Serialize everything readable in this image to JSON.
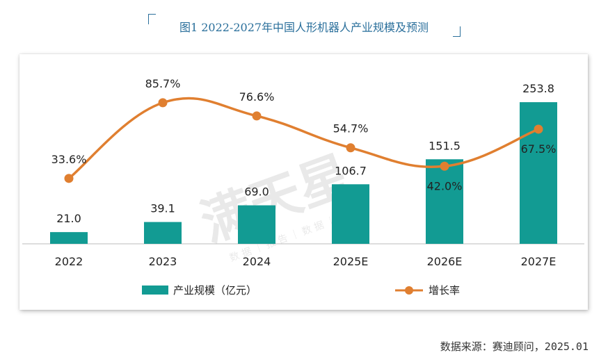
{
  "title": "图1 2022-2027年中国人形机器人产业规模及预测",
  "source": "数据来源：赛迪顾问，2025.01",
  "watermark": {
    "big": "满天星",
    "small": "数 据 ｜ 报 告 ｜ 数 据 ｜ 研 究"
  },
  "colors": {
    "bar": "#129b93",
    "line": "#e07f30",
    "title": "#2a6f9b",
    "text": "#222222",
    "axis": "#bbbbbb"
  },
  "chart_data": {
    "type": "bar",
    "title": "图1 2022-2027年中国人形机器人产业规模及预测",
    "categories": [
      "2022",
      "2023",
      "2024",
      "2025E",
      "2026E",
      "2027E"
    ],
    "series": [
      {
        "name": "产业规模（亿元）",
        "type": "bar",
        "axis": "left",
        "values": [
          21.0,
          39.1,
          69.0,
          106.7,
          151.5,
          253.8
        ],
        "labels": [
          "21.0",
          "39.1",
          "69.0",
          "106.7",
          "151.5",
          "253.8"
        ]
      },
      {
        "name": "增长率",
        "type": "line",
        "axis": "right",
        "values": [
          33.6,
          85.7,
          76.6,
          54.7,
          42.0,
          67.5
        ],
        "labels": [
          "33.6%",
          "85.7%",
          "76.6%",
          "54.7%",
          "42.0%",
          "67.5%"
        ]
      }
    ],
    "ylim_left": [
      0,
      290
    ],
    "ylim_right": [
      -10,
      100
    ],
    "grid": false,
    "legend": "bottom"
  }
}
